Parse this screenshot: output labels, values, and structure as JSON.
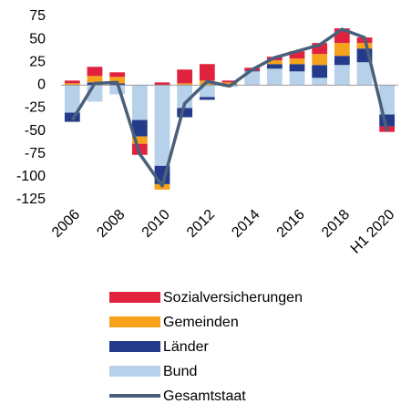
{
  "chart_data": {
    "type": "stacked_bar_line",
    "categories": [
      "2006",
      null,
      "2008",
      null,
      "2010",
      null,
      "2012",
      null,
      "2014",
      null,
      "2016",
      null,
      "2018",
      null,
      "H1 2020"
    ],
    "series": [
      {
        "name": "Sozialversicherungen",
        "color": "#e0223e",
        "values": [
          3,
          10,
          5,
          -12,
          3,
          15,
          18,
          2,
          3,
          4,
          8,
          12,
          16,
          6,
          -6
        ]
      },
      {
        "name": "Gemeinden",
        "color": "#f7a21b",
        "values": [
          2,
          7,
          7,
          -8,
          -6,
          2,
          5,
          2,
          0,
          4,
          6,
          12,
          14,
          6,
          0
        ]
      },
      {
        "name": "Länder",
        "color": "#233b8a",
        "values": [
          -10,
          3,
          2,
          -18,
          -20,
          -10,
          -3,
          1,
          1,
          5,
          8,
          14,
          10,
          15,
          -13
        ]
      },
      {
        "name": "Bund",
        "color": "#b7d1ea",
        "values": [
          -30,
          -18,
          -10,
          -38,
          -88,
          -25,
          -13,
          -2,
          15,
          18,
          15,
          8,
          22,
          25,
          -32
        ]
      },
      {
        "name": "Gesamtstaat",
        "color": "#4a607a",
        "type": "line",
        "values": [
          -38,
          2,
          3,
          -75,
          -110,
          -20,
          4,
          -1,
          17,
          30,
          37,
          44,
          61,
          52,
          -50
        ]
      }
    ],
    "ylim": [
      -125,
      75
    ],
    "yticks": [
      75,
      50,
      25,
      0,
      -25,
      -50,
      -75,
      -100,
      -125
    ]
  }
}
